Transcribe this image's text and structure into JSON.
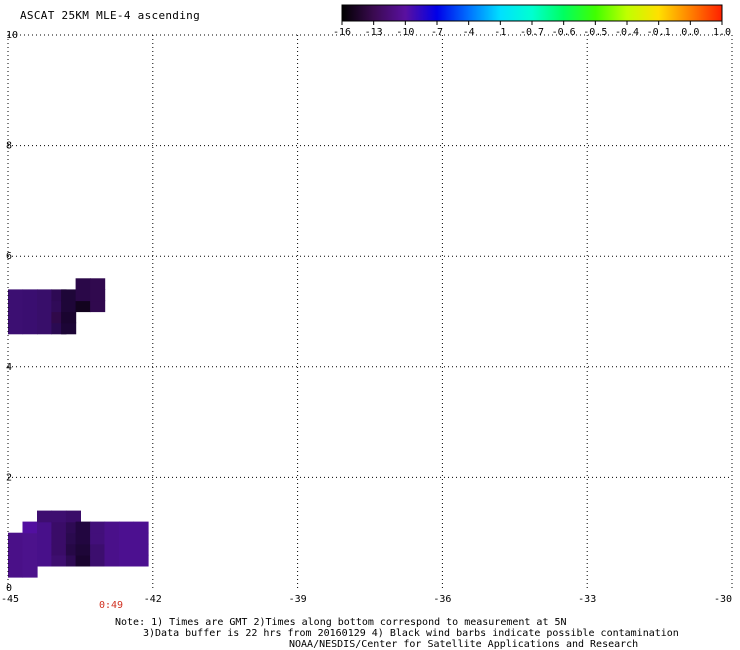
{
  "title": "ASCAT 25KM MLE-4 ascending",
  "colorbar": {
    "labels": [
      "-16",
      "-13",
      "-10",
      "-7",
      "-4",
      "-1",
      "-0.7",
      "-0.6",
      "-0.5",
      "-0.4",
      "-0.1",
      "0.0",
      "1.0"
    ],
    "colors": [
      "#000000",
      "#3a0a50",
      "#5a10a0",
      "#0000e8",
      "#0070ff",
      "#00e0ff",
      "#00ffd0",
      "#00ff60",
      "#40ff00",
      "#c0ff00",
      "#ffe000",
      "#ff8000",
      "#ff2000"
    ]
  },
  "x_axis": {
    "ticks": [
      "-45",
      "-42",
      "-39",
      "-36",
      "-33",
      "-30"
    ],
    "values": [
      -45,
      -42,
      -39,
      -36,
      -33,
      -30
    ]
  },
  "y_axis": {
    "ticks": [
      "0",
      "2",
      "4",
      "6",
      "8",
      "10"
    ],
    "values": [
      0,
      2,
      4,
      6,
      8,
      10
    ]
  },
  "pass_time": "0:49",
  "notes": {
    "line1": "Note: 1) Times are GMT 2)Times along bottom correspond to measurement at 5N",
    "line2": "3)Data buffer is 22 hrs from 20160129 4) Black wind barbs indicate possible contamination",
    "line3": "NOAA/NESDIS/Center for Satellite Applications and Research"
  },
  "swath_cells": [
    {
      "lon": -45.0,
      "lat": 4.6,
      "color": "#3c0f72"
    },
    {
      "lon": -45.0,
      "lat": 4.8,
      "color": "#3c0f72"
    },
    {
      "lon": -45.0,
      "lat": 5.0,
      "color": "#3c0f72"
    },
    {
      "lon": -45.0,
      "lat": 5.2,
      "color": "#3c0f72"
    },
    {
      "lon": -44.7,
      "lat": 4.6,
      "color": "#3a0e70"
    },
    {
      "lon": -44.7,
      "lat": 4.8,
      "color": "#3a0e70"
    },
    {
      "lon": -44.7,
      "lat": 5.0,
      "color": "#3a0e70"
    },
    {
      "lon": -44.7,
      "lat": 5.2,
      "color": "#3a0e70"
    },
    {
      "lon": -44.4,
      "lat": 4.6,
      "color": "#380e6a"
    },
    {
      "lon": -44.4,
      "lat": 4.8,
      "color": "#380e6a"
    },
    {
      "lon": -44.4,
      "lat": 5.0,
      "color": "#380e6a"
    },
    {
      "lon": -44.4,
      "lat": 5.2,
      "color": "#380e6a"
    },
    {
      "lon": -44.1,
      "lat": 4.6,
      "color": "#2a0a52"
    },
    {
      "lon": -44.1,
      "lat": 4.8,
      "color": "#30094a"
    },
    {
      "lon": -44.1,
      "lat": 5.0,
      "color": "#300b58"
    },
    {
      "lon": -44.1,
      "lat": 5.2,
      "color": "#2e0a54"
    },
    {
      "lon": -43.9,
      "lat": 4.6,
      "color": "#1c0536"
    },
    {
      "lon": -43.9,
      "lat": 4.8,
      "color": "#1a0430"
    },
    {
      "lon": -43.9,
      "lat": 5.0,
      "color": "#1e0638"
    },
    {
      "lon": -43.9,
      "lat": 5.2,
      "color": "#1e0638"
    },
    {
      "lon": -43.6,
      "lat": 5.0,
      "color": "#12031e"
    },
    {
      "lon": -43.6,
      "lat": 5.2,
      "color": "#2a0848"
    },
    {
      "lon": -43.6,
      "lat": 5.4,
      "color": "#2a0848"
    },
    {
      "lon": -43.3,
      "lat": 5.0,
      "color": "#30094e"
    },
    {
      "lon": -43.3,
      "lat": 5.2,
      "color": "#30094e"
    },
    {
      "lon": -43.3,
      "lat": 5.4,
      "color": "#30094e"
    },
    {
      "lon": -45.0,
      "lat": 0.2,
      "color": "#4a1088"
    },
    {
      "lon": -45.0,
      "lat": 0.4,
      "color": "#4a1088"
    },
    {
      "lon": -45.0,
      "lat": 0.6,
      "color": "#4a1088"
    },
    {
      "lon": -45.0,
      "lat": 0.8,
      "color": "#4a1088"
    },
    {
      "lon": -44.7,
      "lat": 0.2,
      "color": "#4c128c"
    },
    {
      "lon": -44.7,
      "lat": 0.4,
      "color": "#4c128c"
    },
    {
      "lon": -44.7,
      "lat": 0.6,
      "color": "#4c128c"
    },
    {
      "lon": -44.7,
      "lat": 0.8,
      "color": "#4c128c"
    },
    {
      "lon": -44.7,
      "lat": 1.0,
      "color": "#520fa0"
    },
    {
      "lon": -44.4,
      "lat": 0.4,
      "color": "#48108a"
    },
    {
      "lon": -44.4,
      "lat": 0.6,
      "color": "#48108a"
    },
    {
      "lon": -44.4,
      "lat": 0.8,
      "color": "#48108a"
    },
    {
      "lon": -44.4,
      "lat": 1.0,
      "color": "#48108a"
    },
    {
      "lon": -44.4,
      "lat": 1.2,
      "color": "#3e0e70"
    },
    {
      "lon": -44.1,
      "lat": 0.4,
      "color": "#3e0e70"
    },
    {
      "lon": -44.1,
      "lat": 0.6,
      "color": "#3a0c68"
    },
    {
      "lon": -44.1,
      "lat": 0.8,
      "color": "#3a0c68"
    },
    {
      "lon": -44.1,
      "lat": 1.0,
      "color": "#3a0c68"
    },
    {
      "lon": -44.1,
      "lat": 1.2,
      "color": "#3e0e70"
    },
    {
      "lon": -43.8,
      "lat": 0.4,
      "color": "#2e0a54"
    },
    {
      "lon": -43.8,
      "lat": 0.6,
      "color": "#260846"
    },
    {
      "lon": -43.8,
      "lat": 0.8,
      "color": "#2a0a4e"
    },
    {
      "lon": -43.8,
      "lat": 1.0,
      "color": "#2e0a54"
    },
    {
      "lon": -43.8,
      "lat": 1.2,
      "color": "#3a0c68"
    },
    {
      "lon": -43.6,
      "lat": 0.4,
      "color": "#1a0430"
    },
    {
      "lon": -43.6,
      "lat": 0.6,
      "color": "#1e0638"
    },
    {
      "lon": -43.6,
      "lat": 0.8,
      "color": "#220640"
    },
    {
      "lon": -43.6,
      "lat": 1.0,
      "color": "#220640"
    },
    {
      "lon": -43.3,
      "lat": 0.4,
      "color": "#3c0e6e"
    },
    {
      "lon": -43.3,
      "lat": 0.6,
      "color": "#3c0e6e"
    },
    {
      "lon": -43.3,
      "lat": 0.8,
      "color": "#420f7a"
    },
    {
      "lon": -43.3,
      "lat": 1.0,
      "color": "#420f7a"
    },
    {
      "lon": -43.0,
      "lat": 0.4,
      "color": "#4a108a"
    },
    {
      "lon": -43.0,
      "lat": 0.6,
      "color": "#4a108a"
    },
    {
      "lon": -43.0,
      "lat": 0.8,
      "color": "#4a108a"
    },
    {
      "lon": -43.0,
      "lat": 1.0,
      "color": "#4a108a"
    },
    {
      "lon": -42.7,
      "lat": 0.4,
      "color": "#4c1090"
    },
    {
      "lon": -42.7,
      "lat": 0.6,
      "color": "#4c1090"
    },
    {
      "lon": -42.7,
      "lat": 0.8,
      "color": "#4c1090"
    },
    {
      "lon": -42.7,
      "lat": 1.0,
      "color": "#4c1090"
    },
    {
      "lon": -42.4,
      "lat": 0.4,
      "color": "#4c1090"
    },
    {
      "lon": -42.4,
      "lat": 0.6,
      "color": "#4c1090"
    },
    {
      "lon": -42.4,
      "lat": 0.8,
      "color": "#4c1090"
    },
    {
      "lon": -42.4,
      "lat": 1.0,
      "color": "#4c1090"
    }
  ]
}
